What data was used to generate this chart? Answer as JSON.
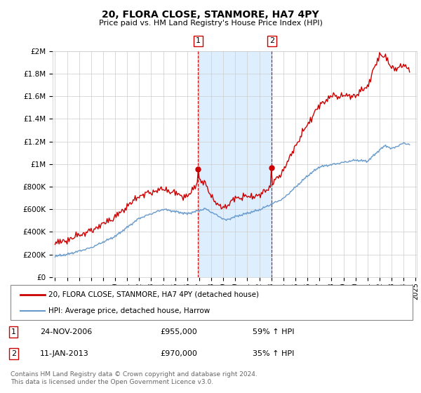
{
  "title": "20, FLORA CLOSE, STANMORE, HA7 4PY",
  "subtitle": "Price paid vs. HM Land Registry's House Price Index (HPI)",
  "footer": "Contains HM Land Registry data © Crown copyright and database right 2024.\nThis data is licensed under the Open Government Licence v3.0.",
  "legend_line1": "20, FLORA CLOSE, STANMORE, HA7 4PY (detached house)",
  "legend_line2": "HPI: Average price, detached house, Harrow",
  "transaction1_date": "24-NOV-2006",
  "transaction1_price": "£955,000",
  "transaction1_hpi": "59% ↑ HPI",
  "transaction2_date": "11-JAN-2013",
  "transaction2_price": "£970,000",
  "transaction2_hpi": "35% ↑ HPI",
  "red_color": "#cc0000",
  "blue_color": "#6699cc",
  "background_color": "#ffffff",
  "grid_color": "#cccccc",
  "shaded_region_color": "#ddeeff",
  "ylim": [
    0,
    2000000
  ],
  "yticks": [
    0,
    200000,
    400000,
    600000,
    800000,
    1000000,
    1200000,
    1400000,
    1600000,
    1800000,
    2000000
  ],
  "ytick_labels": [
    "£0",
    "£200K",
    "£400K",
    "£600K",
    "£800K",
    "£1M",
    "£1.2M",
    "£1.4M",
    "£1.6M",
    "£1.8M",
    "£2M"
  ],
  "year_start": 1995,
  "year_end": 2025,
  "transaction1_year": 2006.9,
  "transaction2_year": 2013.04,
  "transaction1_price_val": 955000,
  "transaction2_price_val": 970000
}
